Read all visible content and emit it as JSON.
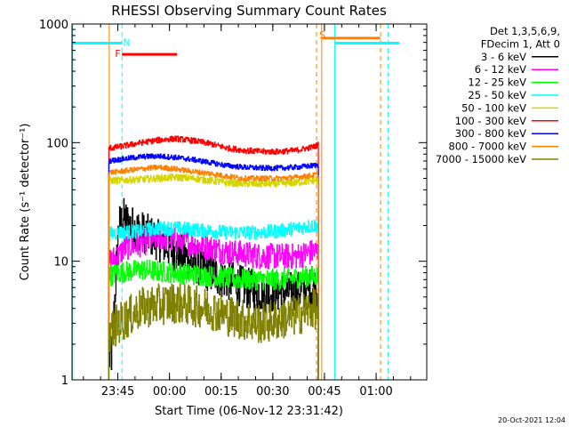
{
  "chart_data": {
    "type": "line",
    "title": "RHESSI Observing Summary Count Rates",
    "xlabel": "Start Time (06-Nov-12 23:31:42)",
    "ylabel": "Count Rate (s⁻¹ detector⁻¹)",
    "yscale": "log",
    "ylim": [
      1,
      1000
    ],
    "xlim_minutes_from_start": [
      0,
      103
    ],
    "x_ticks": [
      {
        "label": "23:45",
        "minute": 13.3
      },
      {
        "label": "00:00",
        "minute": 28.3
      },
      {
        "label": "00:15",
        "minute": 43.3
      },
      {
        "label": "00:30",
        "minute": 58.3
      },
      {
        "label": "00:45",
        "minute": 73.3
      },
      {
        "label": "01:00",
        "minute": 88.3
      }
    ],
    "y_ticks": [
      {
        "label": "1",
        "value": 1
      },
      {
        "label": "10",
        "value": 10
      },
      {
        "label": "100",
        "value": 100
      },
      {
        "label": "1000",
        "value": 1000
      }
    ],
    "legend": {
      "placement": "top-right",
      "header": [
        "Det 1,3,5,6,9,",
        "FDecim 1, Att 0"
      ]
    },
    "data_window_minutes": [
      10.7,
      71.5
    ],
    "series": [
      {
        "name": "3 - 6 keV",
        "color": "#000000",
        "x": [
          10.7,
          11.5,
          13.5,
          15,
          17,
          20,
          25,
          30,
          35,
          40,
          45,
          50,
          55,
          60,
          65,
          70,
          71.5
        ],
        "y": [
          1.5,
          1.6,
          20,
          23,
          20,
          18,
          15,
          12,
          10,
          8,
          7,
          6,
          5.5,
          5.5,
          5.5,
          6,
          6
        ]
      },
      {
        "name": "6 - 12 keV",
        "color": "#ff00ff",
        "x": [
          10.7,
          13.5,
          15,
          20,
          25,
          30,
          35,
          40,
          45,
          50,
          55,
          60,
          65,
          70,
          71.5
        ],
        "y": [
          10,
          11,
          13,
          14,
          16,
          15,
          14,
          13,
          12,
          11.5,
          11,
          11,
          11,
          12,
          12
        ]
      },
      {
        "name": "12 - 25 keV",
        "color": "#00ff00",
        "x": [
          10.7,
          13.5,
          20,
          30,
          40,
          50,
          60,
          70,
          71.5
        ],
        "y": [
          7.5,
          8,
          8.5,
          8,
          7.5,
          7,
          7,
          7.5,
          7.5
        ]
      },
      {
        "name": "25 - 50 keV",
        "color": "#00ffff",
        "x": [
          10.7,
          13.5,
          20,
          25,
          30,
          35,
          40,
          45,
          50,
          55,
          60,
          65,
          70,
          71.5
        ],
        "y": [
          17,
          17.5,
          18,
          19,
          19,
          18.5,
          18,
          17.5,
          17.5,
          17.5,
          18,
          19,
          20,
          20
        ]
      },
      {
        "name": "50 - 100 keV",
        "color": "#d4d400",
        "x": [
          10.7,
          13.5,
          20,
          25,
          30,
          35,
          40,
          45,
          50,
          55,
          60,
          65,
          70,
          71.5
        ],
        "y": [
          48,
          48,
          49,
          50,
          51,
          50,
          48,
          46,
          45,
          45,
          45,
          46,
          48,
          48
        ]
      },
      {
        "name": "100 - 300 keV",
        "color": "#ff0000",
        "x": [
          10.7,
          13.5,
          20,
          25,
          30,
          35,
          40,
          45,
          50,
          55,
          60,
          65,
          70,
          71.5
        ],
        "y": [
          90,
          92,
          100,
          105,
          108,
          104,
          98,
          90,
          86,
          84,
          84,
          86,
          92,
          96
        ]
      },
      {
        "name": "300 - 800 keV",
        "color": "#0000ff",
        "x": [
          10.7,
          13.5,
          20,
          25,
          30,
          35,
          40,
          45,
          50,
          55,
          60,
          65,
          70,
          71.5
        ],
        "y": [
          70,
          72,
          76,
          77,
          75,
          72,
          68,
          64,
          62,
          61,
          61,
          62,
          64,
          65
        ]
      },
      {
        "name": "800 - 7000 keV",
        "color": "#ff8000",
        "x": [
          10.7,
          13.5,
          20,
          25,
          30,
          35,
          40,
          45,
          50,
          55,
          60,
          65,
          70,
          71.5
        ],
        "y": [
          56,
          57,
          60,
          62,
          60,
          57,
          55,
          52,
          50,
          50,
          50,
          51,
          53,
          54
        ]
      },
      {
        "name": "7000 - 15000 keV",
        "color": "#808000",
        "x": [
          10.7,
          13.5,
          15,
          20,
          25,
          30,
          35,
          40,
          45,
          50,
          55,
          60,
          65,
          70,
          71.5
        ],
        "y": [
          2.5,
          3,
          3.2,
          4,
          4.3,
          4.5,
          4.2,
          4,
          3.5,
          3.2,
          3.0,
          3.2,
          3.5,
          4,
          4
        ]
      }
    ],
    "flags": [
      {
        "label": "S",
        "color": "#ff8000",
        "label_x_minute": 71.8,
        "bar_x_minutes": [
          72.5,
          89.5
        ],
        "value": 760
      },
      {
        "label": "N",
        "color": "#00ffff",
        "label_x_minute": 14.8,
        "bar_x_minutes": [
          0,
          14.5
        ],
        "value": 690
      },
      {
        "label": "N",
        "color": "#00ffff",
        "label_x_minute": null,
        "bar_x_minutes": [
          76.3,
          95
        ],
        "value": 690
      },
      {
        "label": "F",
        "color": "#ff0000",
        "label_x_minute": 12.5,
        "bar_x_minutes": [
          14.5,
          30.5
        ],
        "value": 555
      }
    ],
    "vertical_lines": [
      {
        "minute": 0.2,
        "color": "#00ffff",
        "style": "solid"
      },
      {
        "minute": 14.5,
        "color": "#00ffff",
        "style": "dashed"
      },
      {
        "minute": 10.8,
        "color": "#ff8000",
        "style": "solid"
      },
      {
        "minute": 72.5,
        "color": "#ff8000",
        "style": "solid"
      },
      {
        "minute": 71.0,
        "color": "#ff8000",
        "style": "dashed"
      },
      {
        "minute": 76.3,
        "color": "#00ffff",
        "style": "solid"
      },
      {
        "minute": 89.6,
        "color": "#ff8000",
        "style": "dashed"
      },
      {
        "minute": 91.8,
        "color": "#00ffff",
        "style": "dashed"
      }
    ],
    "footer": "20-Oct-2021 12:04"
  }
}
